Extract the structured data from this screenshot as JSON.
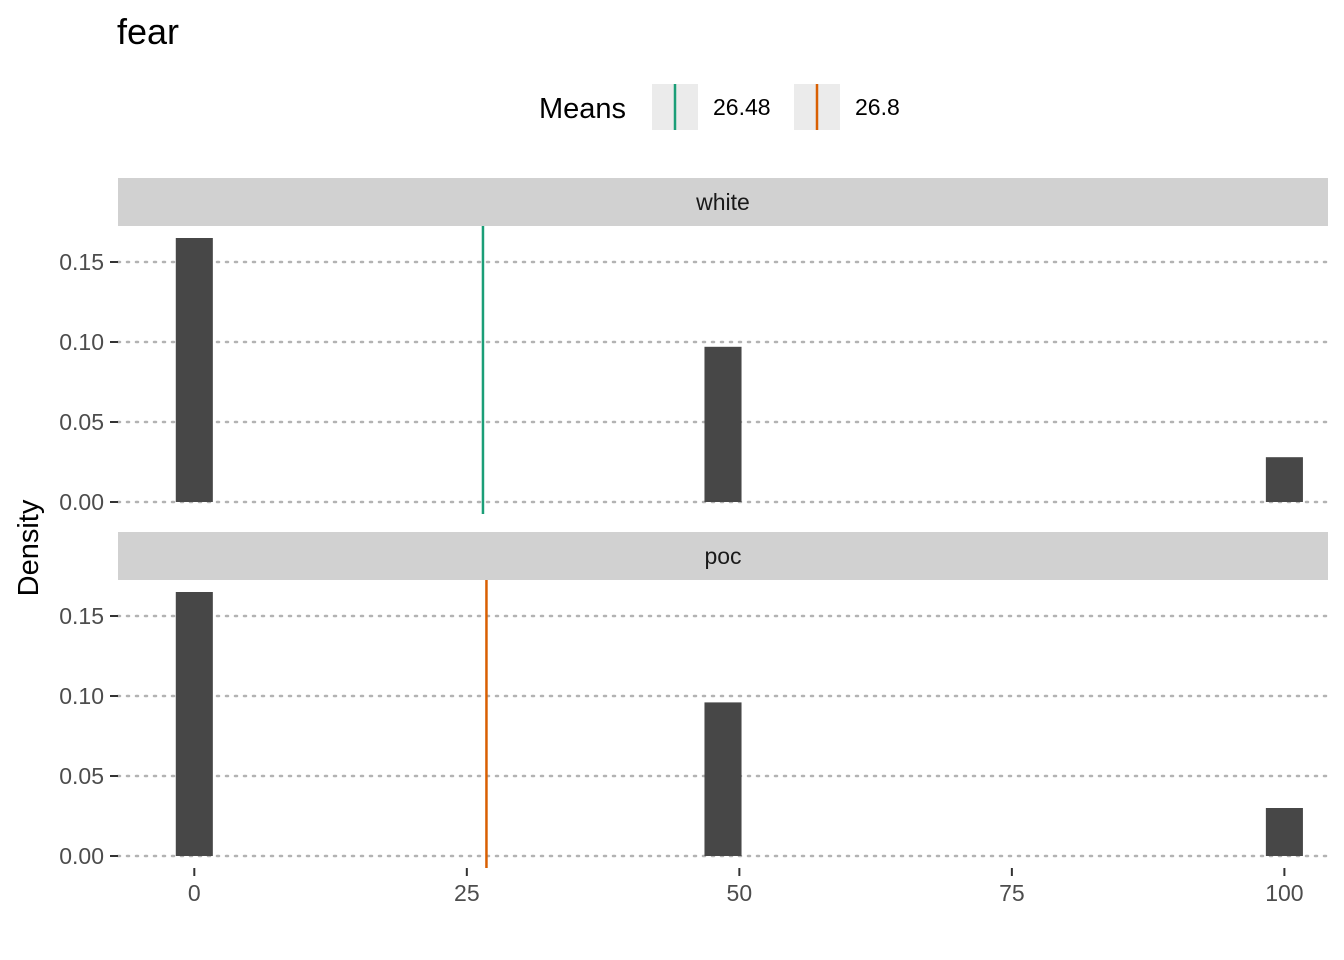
{
  "chart_data": {
    "type": "bar",
    "title": "fear",
    "xlabel": "",
    "ylabel": "Density",
    "xlim": [
      -7,
      104
    ],
    "ylim": [
      -0.0075,
      0.1725
    ],
    "x_ticks": [
      0,
      25,
      50,
      75,
      100
    ],
    "x_tick_labels": [
      "0",
      "25",
      "50",
      "75",
      "100"
    ],
    "y_ticks": [
      0,
      0.05,
      0.1,
      0.15
    ],
    "y_tick_labels": [
      "0.00",
      "0.05",
      "0.10",
      "0.15"
    ],
    "grid": "horizontal dotted",
    "legend": {
      "title": "Means",
      "placement": "top",
      "entries": [
        {
          "label": "26.48",
          "color": "#1b9e77"
        },
        {
          "label": "26.8",
          "color": "#d95f02"
        }
      ]
    },
    "bar_color": "#474747",
    "bar_width": 3.4,
    "panels": [
      {
        "strip": "white",
        "x": [
          0,
          48.5,
          100
        ],
        "values": [
          0.165,
          0.097,
          0.028
        ],
        "mean": 26.48,
        "mean_color": "#1b9e77"
      },
      {
        "strip": "poc",
        "x": [
          0,
          48.5,
          100
        ],
        "values": [
          0.165,
          0.096,
          0.03
        ],
        "mean": 26.8,
        "mean_color": "#d95f02"
      }
    ]
  }
}
